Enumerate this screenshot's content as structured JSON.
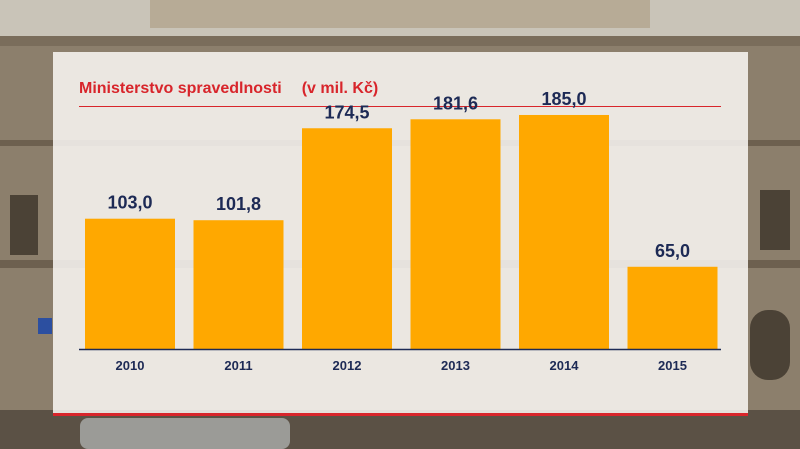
{
  "chart_data": {
    "type": "bar",
    "title": "Ministerstvo spravedlnosti",
    "unit_label": "(v mil. Kč)",
    "categories": [
      "2010",
      "2011",
      "2012",
      "2013",
      "2014",
      "2015"
    ],
    "values": [
      103.0,
      101.8,
      174.5,
      181.6,
      185.0,
      65.0
    ],
    "value_labels": [
      "103,0",
      "101,8",
      "174,5",
      "181,6",
      "185,0",
      "65,0"
    ],
    "ylim": [
      0,
      200
    ],
    "grid": false,
    "colors": {
      "bar": "#ffa800",
      "title": "#d8252b",
      "labels": "#1d2a55",
      "axis": "#1d2a55"
    }
  }
}
